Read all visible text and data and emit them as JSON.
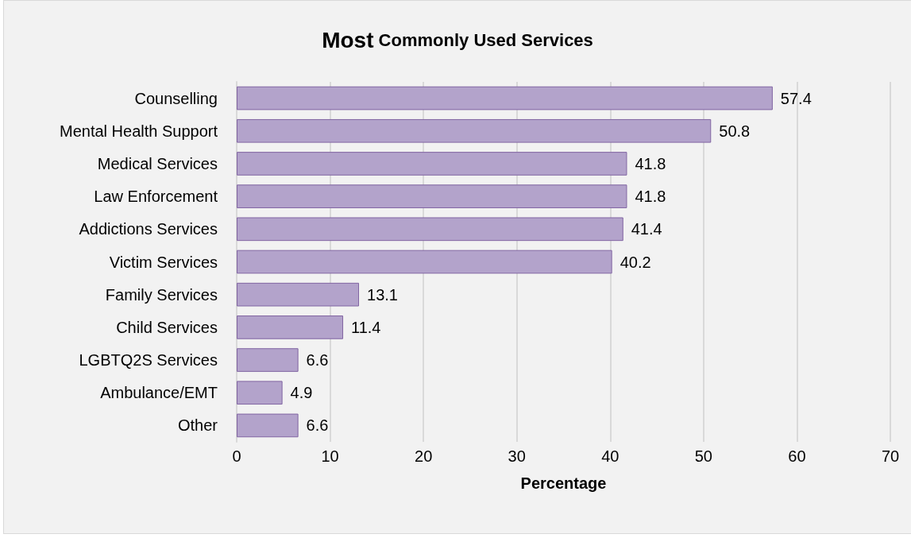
{
  "chart_data": {
    "type": "bar",
    "orientation": "horizontal",
    "title": "Most Commonly Used Services",
    "xlabel": "Percentage",
    "categories": [
      "Counselling",
      "Mental Health Support",
      "Medical Services",
      "Law Enforcement",
      "Addictions Services",
      "Victim Services",
      "Family Services",
      "Child Services",
      "LGBTQ2S Services",
      "Ambulance/EMT",
      "Other"
    ],
    "values": [
      57.4,
      50.8,
      41.8,
      41.8,
      41.4,
      40.2,
      13.1,
      11.4,
      6.6,
      4.9,
      6.6
    ],
    "color": "#b3a3cb",
    "xlim": [
      0,
      70
    ],
    "xticks": [
      0,
      10,
      20,
      30,
      40,
      50,
      60,
      70
    ],
    "grid": "x",
    "data_labels": true
  }
}
